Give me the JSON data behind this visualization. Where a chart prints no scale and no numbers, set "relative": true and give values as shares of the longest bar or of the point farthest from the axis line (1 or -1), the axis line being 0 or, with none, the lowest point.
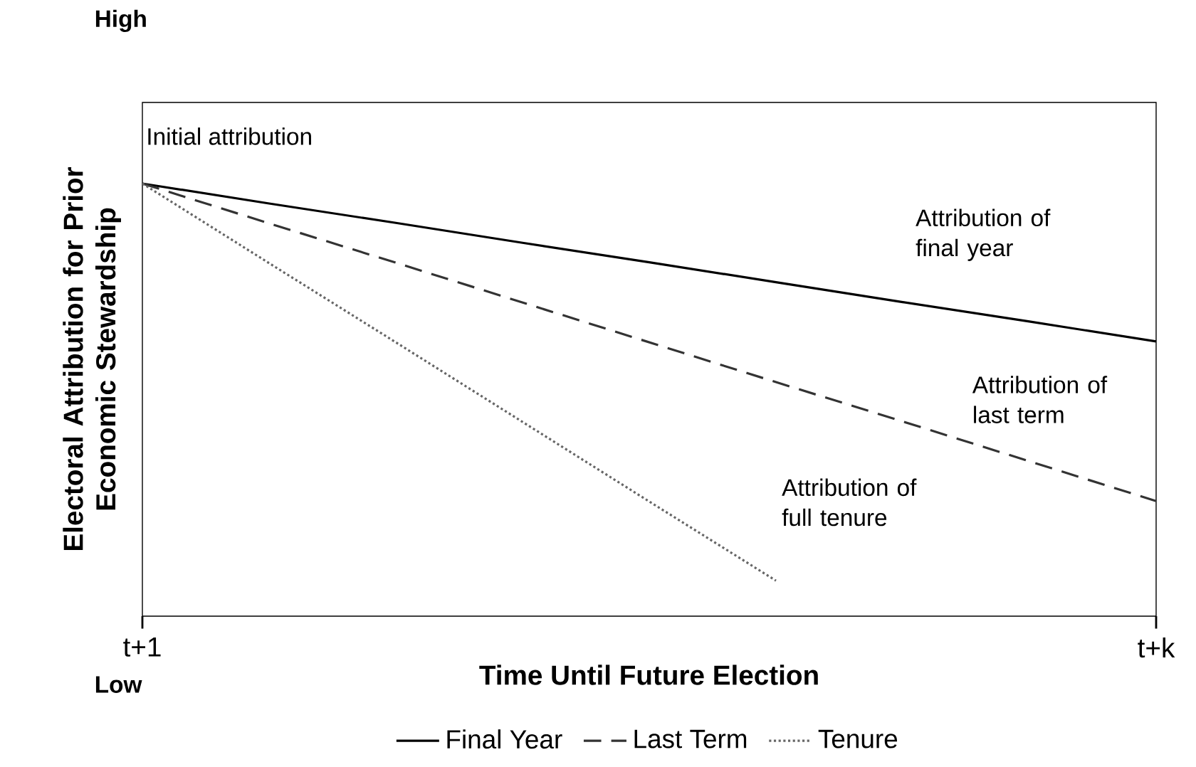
{
  "chart_data": {
    "type": "line",
    "relative": true,
    "xlabel": "Time Until Future Election",
    "ylabel": "Electoral Attribution for Prior Economic Stewardship",
    "categories": [
      "t+1",
      null,
      null,
      null,
      null,
      null,
      null,
      null,
      "t+k"
    ],
    "series": [
      {
        "name": "Final Year",
        "color": "#000000",
        "line_style": "solid",
        "values": [
          1,
          0.954,
          0.909,
          0.863,
          0.818,
          0.772,
          0.726,
          0.681,
          0.635
        ]
      },
      {
        "name": "Last Term",
        "color": "#333333",
        "line_style": "dashed",
        "values": [
          1,
          0.908,
          0.817,
          0.725,
          0.633,
          0.541,
          0.45,
          0.358,
          0.266
        ]
      },
      {
        "name": "Tenure",
        "color": "#666666",
        "line_style": "dotted",
        "values": [
          1,
          0.816,
          0.633,
          0.449,
          0.265,
          0.082,
          null,
          null,
          null
        ]
      }
    ],
    "annotations": [
      "High",
      "Low",
      "Initial attribution",
      "Attribution of final year",
      "Attribution of last term",
      "Attribution of full tenure"
    ],
    "legend": "bottom",
    "grid": false,
    "marker": "none"
  }
}
